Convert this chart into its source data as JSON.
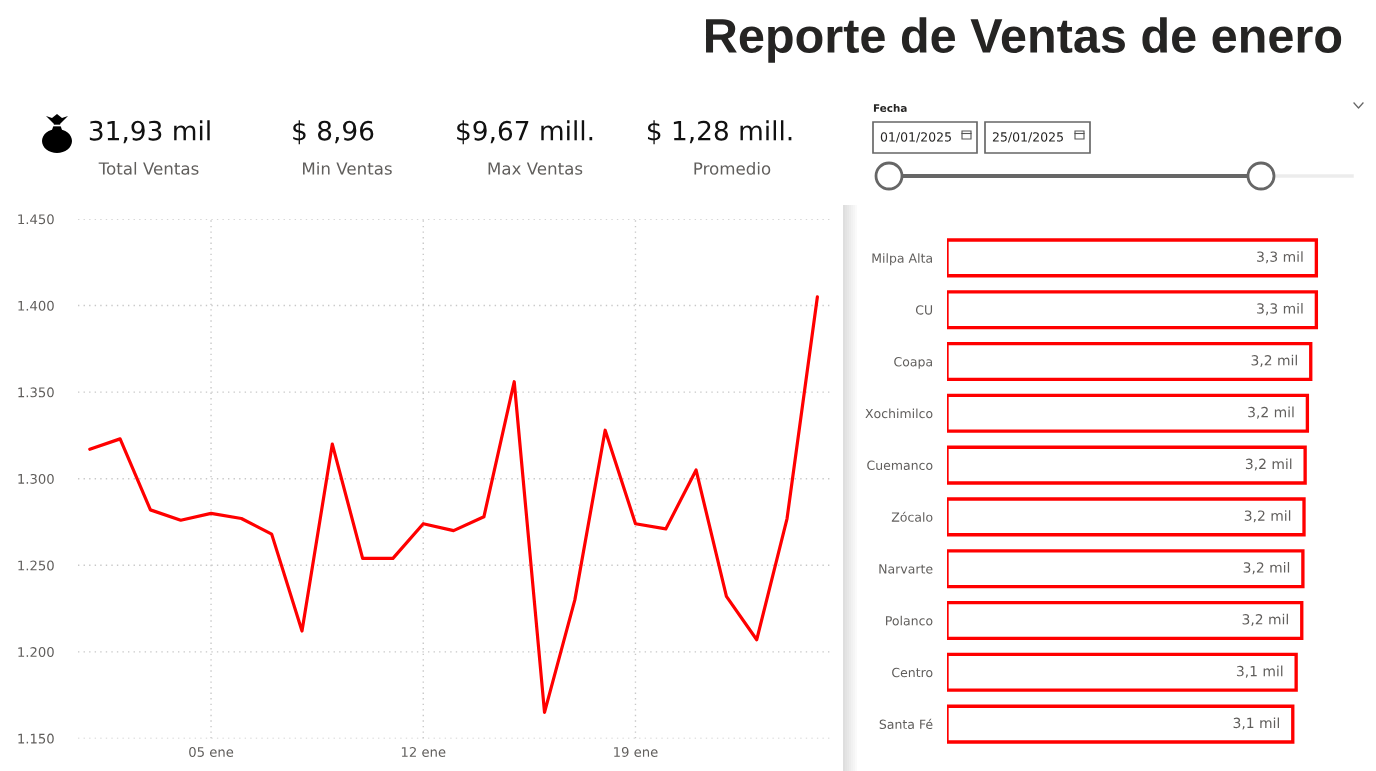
{
  "chart_data": [
    {
      "type": "other",
      "title": "Reporte de Ventas de enero"
    },
    {
      "type": "other",
      "annotations": [
        "31,93 mil",
        "Total Ventas",
        "$ 8,96",
        "Min Ventas",
        "$9,67 mill.",
        "Max Ventas",
        "$ 1,28 mill.",
        "Promedio"
      ]
    },
    {
      "type": "other",
      "title": "Fecha",
      "annotations": [
        "01/01/2025",
        "25/01/2025"
      ]
    },
    {
      "type": "line",
      "x": [
        "2025-01-01",
        "2025-01-02",
        "2025-01-03",
        "2025-01-04",
        "2025-01-05",
        "2025-01-06",
        "2025-01-07",
        "2025-01-08",
        "2025-01-09",
        "2025-01-10",
        "2025-01-11",
        "2025-01-12",
        "2025-01-13",
        "2025-01-14",
        "2025-01-15",
        "2025-01-16",
        "2025-01-17",
        "2025-01-18",
        "2025-01-19",
        "2025-01-20",
        "2025-01-21",
        "2025-01-22",
        "2025-01-23",
        "2025-01-24",
        "2025-01-25"
      ],
      "values": [
        1317,
        1323,
        1282,
        1276,
        1280,
        1277,
        1268,
        1212,
        1320,
        1254,
        1254,
        1274,
        1270,
        1278,
        1356,
        1165,
        1230,
        1328,
        1274,
        1271,
        1305,
        1232,
        1207,
        1277,
        1405
      ],
      "color": "#ff0000",
      "line_style": "solid",
      "xlim": [
        "2024-12-31T14:40",
        "2025-01-25T10:00"
      ],
      "ylim": [
        1150,
        1450
      ],
      "xticks": [
        {
          "value": "2025-01-05",
          "label": "05 ene"
        },
        {
          "value": "2025-01-12",
          "label": "12 ene"
        },
        {
          "value": "2025-01-19",
          "label": "19 ene"
        }
      ],
      "yticks": [
        {
          "value": 1150,
          "label": "1.150"
        },
        {
          "value": 1200,
          "label": "1.200"
        },
        {
          "value": 1250,
          "label": "1.250"
        },
        {
          "value": 1300,
          "label": "1.300"
        },
        {
          "value": 1350,
          "label": "1.350"
        },
        {
          "value": 1400,
          "label": "1.400"
        },
        {
          "value": 1450,
          "label": "1.450"
        }
      ],
      "grid": true
    },
    {
      "type": "bar",
      "orientation": "horizontal",
      "categories": [
        "Milpa Alta",
        "CU",
        "Coapa",
        "Xochimilco",
        "Cuemanco",
        "Zócalo",
        "Narvarte",
        "Polanco",
        "Centro",
        "Santa Fé"
      ],
      "values": [
        3.29,
        3.29,
        3.24,
        3.21,
        3.19,
        3.18,
        3.17,
        3.16,
        3.11,
        3.08
      ],
      "color": "#ff0000",
      "value_labels": [
        "3,3 mil",
        "3,3 mil",
        "3,2 mil",
        "3,2 mil",
        "3,2 mil",
        "3,2 mil",
        "3,2 mil",
        "3,2 mil",
        "3,1 mil",
        "3,1 mil"
      ],
      "tick_labels": "y"
    }
  ]
}
